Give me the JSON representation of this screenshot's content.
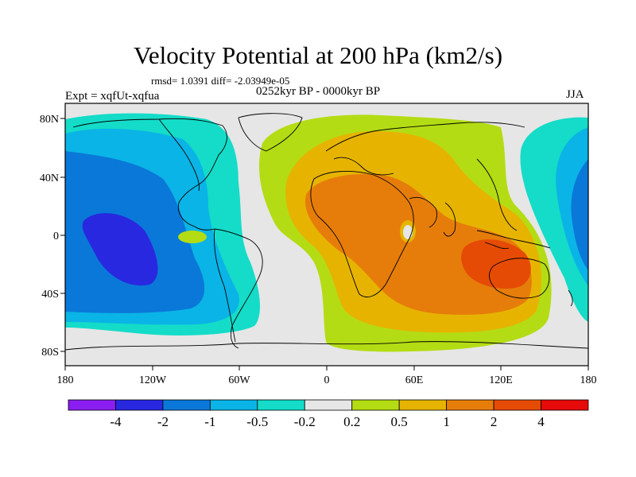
{
  "header": {
    "title": "Velocity Potential at 200 hPa (km2/s)",
    "stats": "rmsd= 1.0391 diff= -2.03949e-05",
    "experiment": "Expt = xqfUt-xqfua",
    "period": "0252kyr BP - 0000kyr BP",
    "season": "JJA"
  },
  "axes": {
    "x_ticks": [
      "180",
      "120W",
      "60W",
      "0",
      "60E",
      "120E",
      "180"
    ],
    "y_ticks": [
      "80N",
      "40N",
      "0",
      "40S",
      "80S"
    ]
  },
  "colorbar": {
    "labels": [
      "-4",
      "-2",
      "-1",
      "-0.5",
      "-0.2",
      "0.2",
      "0.5",
      "1",
      "2",
      "4"
    ],
    "colors": [
      "#8a1ef0",
      "#2828e0",
      "#0a78d8",
      "#0ab4e6",
      "#14dcc8",
      "#e6e6e6",
      "#b4dc14",
      "#e6b400",
      "#e67d0a",
      "#e64b05",
      "#e60a0a"
    ]
  },
  "colors": {
    "ocean_neutral": "#e6e6e6",
    "coast": "#000000"
  }
}
